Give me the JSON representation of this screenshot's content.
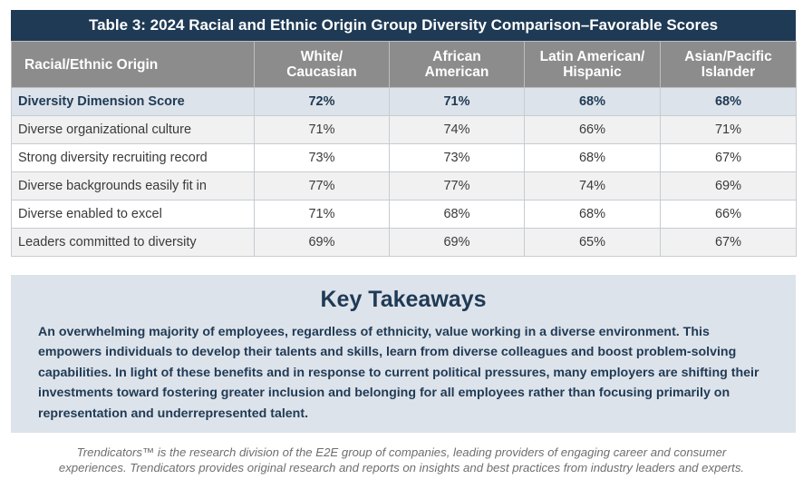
{
  "table": {
    "title": "Table 3: 2024 Racial and Ethnic Origin Group Diversity Comparison–Favorable Scores",
    "header": {
      "row_label": "Racial/Ethnic Origin",
      "columns": [
        {
          "line1": "White/",
          "line2": "Caucasian"
        },
        {
          "line1": "African",
          "line2": "American"
        },
        {
          "line1": "Latin American/",
          "line2": "Hispanic"
        },
        {
          "line1": "Asian/Pacific",
          "line2": "Islander"
        }
      ]
    },
    "rows": [
      {
        "label": "Diversity Dimension Score",
        "values": [
          "72%",
          "71%",
          "68%",
          "68%"
        ]
      },
      {
        "label": "Diverse organizational culture",
        "values": [
          "71%",
          "74%",
          "66%",
          "71%"
        ]
      },
      {
        "label": "Strong diversity recruiting record",
        "values": [
          "73%",
          "73%",
          "68%",
          "67%"
        ]
      },
      {
        "label": "Diverse backgrounds easily fit in",
        "values": [
          "77%",
          "77%",
          "74%",
          "69%"
        ]
      },
      {
        "label": "Diverse enabled to excel",
        "values": [
          "71%",
          "68%",
          "68%",
          "66%"
        ]
      },
      {
        "label": "Leaders committed to diversity",
        "values": [
          "69%",
          "69%",
          "65%",
          "67%"
        ]
      }
    ]
  },
  "takeaways": {
    "heading": "Key Takeaways",
    "body": "An overwhelming majority of employees, regardless of ethnicity, value working in a diverse environment. This empowers individuals to develop their talents and skills, learn from diverse colleagues and boost problem-solving capabilities. In light of these benefits and in response to current political pressures, many employers are shifting their investments toward fostering greater inclusion and belonging for all employees rather than focusing primarily on representation and underrepresented talent."
  },
  "footer": {
    "line1": "Trendicators™ is the research division of the E2E group of companies, leading providers of engaging career and consumer",
    "line2": "experiences. Trendicators provides original research and reports on insights and best practices from industry leaders and experts."
  }
}
